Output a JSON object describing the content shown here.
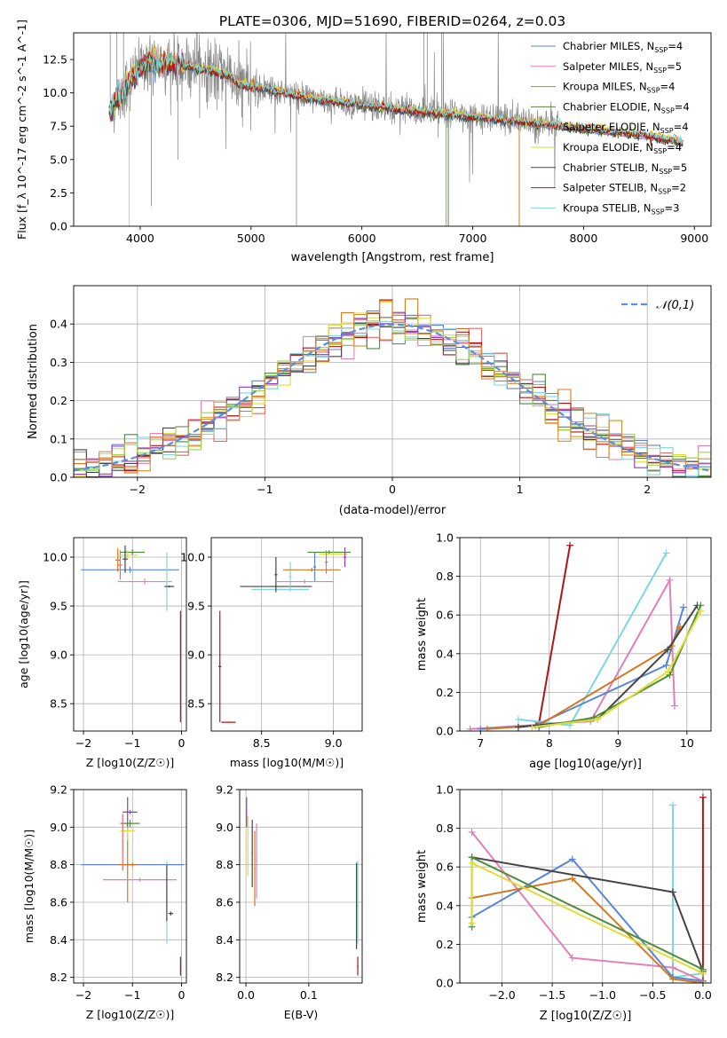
{
  "figure_title": "PLATE=0306, MJD=51690, FIBERID=0264, z=0.03",
  "colors": {
    "series": [
      "#5b84d8",
      "#e07fb8",
      "#d4781f",
      "#4f8c3a",
      "#e46b6b",
      "#dede33",
      "#444444",
      "#b01515",
      "#7dd7e0"
    ],
    "observed": "#888888",
    "gaussian": "#5b8fd8",
    "extra_hist": [
      "#8d3fbf",
      "#9cd64b",
      "#d98c33"
    ],
    "grid": "#b0b0b0"
  },
  "chart_data": [
    {
      "id": "spectrum",
      "type": "line",
      "title": "PLATE=0306, MJD=51690, FIBERID=0264, z=0.03",
      "xlabel": "wavelength [Angstrom, rest frame]",
      "ylabel": "Flux [f_λ 10^-17 erg cm^-2 s^-1 A^-1]",
      "xlim": [
        3400,
        9150
      ],
      "ylim": [
        0,
        14.5
      ],
      "xticks": [
        4000,
        5000,
        6000,
        7000,
        8000,
        9000
      ],
      "yticks": [
        0.0,
        2.5,
        5.0,
        7.5,
        10.0,
        12.5
      ],
      "grid": false,
      "legend_position": "top-right",
      "legend": [
        {
          "base": "Chabrier MILES, N",
          "sub": "SSP",
          "tail": "=4"
        },
        {
          "base": "Salpeter MILES, N",
          "sub": "SSP",
          "tail": "=5"
        },
        {
          "base": "Kroupa MILES, N",
          "sub": "SSP",
          "tail": "=4"
        },
        {
          "base": "Chabrier ELODIE, N",
          "sub": "SSP",
          "tail": "=4"
        },
        {
          "base": "Salpeter ELODIE, N",
          "sub": "SSP",
          "tail": "=4"
        },
        {
          "base": "Kroupa ELODIE, N",
          "sub": "SSP",
          "tail": "=4"
        },
        {
          "base": "Chabrier STELIB, N",
          "sub": "SSP",
          "tail": "=5"
        },
        {
          "base": "Salpeter STELIB, N",
          "sub": "SSP",
          "tail": "=2"
        },
        {
          "base": "Kroupa STELIB, N",
          "sub": "SSP",
          "tail": "=3"
        }
      ],
      "model_shape": {
        "wavelength": [
          3720,
          3800,
          3900,
          4000,
          4100,
          4300,
          4500,
          4800,
          4900,
          5200,
          5500,
          6000,
          6500,
          7000,
          7500,
          8000,
          8500,
          8900
        ],
        "flux": [
          8.8,
          9.6,
          10.8,
          12.0,
          12.3,
          12.1,
          11.9,
          11.3,
          10.6,
          10.2,
          9.6,
          9.1,
          8.6,
          8.2,
          7.8,
          7.3,
          6.9,
          6.3
        ]
      },
      "observed_range": [
        3750,
        7770
      ]
    },
    {
      "id": "residual_hist",
      "type": "histogram",
      "xlabel": "(data-model)/error",
      "ylabel": "Normed distribution",
      "xlim": [
        -2.5,
        2.5
      ],
      "ylim": [
        0,
        0.5
      ],
      "xticks": [
        -2,
        -1,
        0,
        1,
        2
      ],
      "yticks": [
        0.0,
        0.1,
        0.2,
        0.3,
        0.4
      ],
      "bin_width": 0.1,
      "grid": true,
      "legend_position": "top-right",
      "legend_label": "𝒩(0,1)",
      "gaussian": {
        "mu": 0,
        "sigma": 1
      }
    },
    {
      "id": "age_vs_Z",
      "type": "errorbar",
      "xlabel": "Z [log10(Z/Z☉)]",
      "ylabel": "age [log10(age/yr)]",
      "xlim": [
        -2.2,
        0.1
      ],
      "ylim": [
        8.22,
        10.2
      ],
      "xticks": [
        -2,
        -1,
        0
      ],
      "yticks": [
        8.5,
        9.0,
        9.5,
        10.0
      ],
      "grid": true,
      "points": [
        {
          "s": 0,
          "x": -1.05,
          "xe": 1.0,
          "y": 9.87,
          "ye": 0.03
        },
        {
          "s": 1,
          "x": -0.75,
          "xe": 0.55,
          "y": 9.75,
          "ye": 0.03
        },
        {
          "s": 2,
          "x": -1.3,
          "xe": 0.05,
          "y": 9.97,
          "ye": 0.12
        },
        {
          "s": 3,
          "x": -1.0,
          "xe": 0.25,
          "y": 10.05,
          "ye": 0.03
        },
        {
          "s": 4,
          "x": -1.25,
          "xe": 0.04,
          "y": 9.92,
          "ye": 0.15
        },
        {
          "s": 5,
          "x": -1.1,
          "xe": 0.2,
          "y": 10.02,
          "ye": 0.05
        },
        {
          "s": 6,
          "x": -1.15,
          "xe": 0.05,
          "y": 9.98,
          "ye": 0.14
        },
        {
          "s": 8,
          "x": -0.3,
          "xe": 0.03,
          "y": 9.75,
          "ye": 0.3
        },
        {
          "s": 6,
          "x": -0.25,
          "xe": 0.1,
          "y": 9.7,
          "ye": 0.01
        },
        {
          "s": 7,
          "x": -0.02,
          "xe": 0.01,
          "y": 8.88,
          "ye": 0.57
        }
      ]
    },
    {
      "id": "age_vs_mass",
      "type": "errorbar",
      "xlabel": "mass [log10(M/M☉)]",
      "ylabel": "",
      "xlim": [
        8.15,
        9.2
      ],
      "ylim": [
        8.22,
        10.2
      ],
      "xticks": [
        8.5,
        9.0
      ],
      "yticks": [
        8.5,
        9.0,
        9.5,
        10.0
      ],
      "grid": true,
      "points": [
        {
          "s": 6,
          "x": 8.6,
          "xe": 0.25,
          "y": 9.7,
          "ye": 0.01
        },
        {
          "s": 8,
          "x": 8.63,
          "xe": 0.2,
          "y": 9.67,
          "ye": 0.01
        },
        {
          "s": 6,
          "x": 8.6,
          "xe": 0.01,
          "y": 9.82,
          "ye": 0.18
        },
        {
          "s": 8,
          "x": 8.7,
          "xe": 0.01,
          "y": 9.8,
          "ye": 0.15
        },
        {
          "s": 2,
          "x": 8.85,
          "xe": 0.2,
          "y": 9.87,
          "ye": 0.02
        },
        {
          "s": 0,
          "x": 8.87,
          "xe": 0.01,
          "y": 9.9,
          "ye": 0.15
        },
        {
          "s": 1,
          "x": 8.8,
          "xe": 0.2,
          "y": 9.75,
          "ye": 0.02
        },
        {
          "s": 3,
          "x": 8.97,
          "xe": 0.15,
          "y": 10.05,
          "ye": 0.02
        },
        {
          "s": 5,
          "x": 9.0,
          "xe": 0.1,
          "y": 10.03,
          "ye": 0.02
        },
        {
          "s": 9,
          "x": 9.08,
          "xe": 0.01,
          "y": 10.0,
          "ye": 0.1
        },
        {
          "s": 4,
          "x": 8.95,
          "xe": 0.01,
          "y": 9.95,
          "ye": 0.12
        },
        {
          "s": 7,
          "x": 8.21,
          "xe": 0.01,
          "y": 8.88,
          "ye": 0.57
        },
        {
          "s": 7,
          "x": 8.27,
          "xe": 0.05,
          "y": 8.31,
          "ye": 0.005
        }
      ]
    },
    {
      "id": "weight_vs_age",
      "type": "line",
      "xlabel": "age [log10(age/yr)]",
      "ylabel": "mass weight",
      "xlim": [
        6.7,
        10.35
      ],
      "ylim": [
        0,
        1
      ],
      "xticks": [
        7,
        8,
        9,
        10
      ],
      "yticks": [
        0.0,
        0.2,
        0.4,
        0.6,
        0.8,
        1.0
      ],
      "grid": true,
      "series": [
        {
          "s": 7,
          "x": [
            7.85,
            8.3
          ],
          "y": [
            0.04,
            0.96
          ]
        },
        {
          "s": 8,
          "x": [
            7.55,
            8.3,
            9.7
          ],
          "y": [
            0.06,
            0.03,
            0.92
          ]
        },
        {
          "s": 1,
          "x": [
            6.85,
            8.6,
            9.75,
            9.82
          ],
          "y": [
            0.01,
            0.05,
            0.78,
            0.13
          ]
        },
        {
          "s": 0,
          "x": [
            7.0,
            7.8,
            9.7,
            9.95
          ],
          "y": [
            0.01,
            0.03,
            0.34,
            0.64
          ]
        },
        {
          "s": 2,
          "x": [
            7.1,
            7.85,
            9.78,
            9.9
          ],
          "y": [
            0.01,
            0.03,
            0.44,
            0.54
          ]
        },
        {
          "s": 6,
          "x": [
            7.55,
            8.7,
            9.72,
            10.15
          ],
          "y": [
            0.02,
            0.06,
            0.42,
            0.65
          ]
        },
        {
          "s": 3,
          "x": [
            7.85,
            8.65,
            9.75,
            10.2
          ],
          "y": [
            0.02,
            0.07,
            0.29,
            0.65
          ]
        },
        {
          "s": 5,
          "x": [
            7.75,
            8.7,
            9.73,
            10.2
          ],
          "y": [
            0.02,
            0.06,
            0.31,
            0.62
          ]
        }
      ]
    },
    {
      "id": "mass_vs_Z",
      "type": "errorbar",
      "xlabel": "Z [log10(Z/Z☉)]",
      "ylabel": "mass [log10(M/M☉)]",
      "xlim": [
        -2.2,
        0.1
      ],
      "ylim": [
        8.17,
        9.2
      ],
      "xticks": [
        -2,
        -1,
        0
      ],
      "yticks": [
        8.2,
        8.4,
        8.6,
        8.8,
        9.0,
        9.2
      ],
      "grid": true,
      "points": [
        {
          "s": 0,
          "x": -1.0,
          "xe": 1.05,
          "y": 8.8,
          "ye": 0.01
        },
        {
          "s": 2,
          "x": -1.1,
          "xe": 0.2,
          "y": 8.8,
          "ye": 0.2
        },
        {
          "s": 1,
          "x": -0.85,
          "xe": 0.75,
          "y": 8.72,
          "ye": 0.01
        },
        {
          "s": 8,
          "x": -0.3,
          "xe": 0.02,
          "y": 8.6,
          "ye": 0.22
        },
        {
          "s": 6,
          "x": -0.3,
          "xe": 0.01,
          "y": 8.65,
          "ye": 0.15
        },
        {
          "s": 6,
          "x": -0.22,
          "xe": 0.05,
          "y": 8.54,
          "ye": 0.01
        },
        {
          "s": 3,
          "x": -1.05,
          "xe": 0.2,
          "y": 9.02,
          "ye": 0.02
        },
        {
          "s": 5,
          "x": -1.1,
          "xe": 0.15,
          "y": 8.98,
          "ye": 0.05
        },
        {
          "s": 9,
          "x": -1.05,
          "xe": 0.15,
          "y": 9.08,
          "ye": 0.01
        },
        {
          "s": 9,
          "x": -1.1,
          "xe": 0.01,
          "y": 9.08,
          "ye": 0.08
        },
        {
          "s": 4,
          "x": -1.2,
          "xe": 0.01,
          "y": 8.92,
          "ye": 0.15
        },
        {
          "s": 7,
          "x": -0.02,
          "xe": 0.01,
          "y": 8.26,
          "ye": 0.05
        }
      ]
    },
    {
      "id": "mass_vs_ebv",
      "type": "errorbar",
      "xlabel": "E(B-V)",
      "ylabel": "",
      "xlim": [
        -0.01,
        0.185
      ],
      "ylim": [
        8.17,
        9.2
      ],
      "xticks": [
        0.0,
        0.1
      ],
      "yticks": [
        8.2,
        8.4,
        8.6,
        8.8,
        9.0,
        9.2
      ],
      "grid": true,
      "points": [
        {
          "s": 9,
          "x": 0.001,
          "xe": 0.001,
          "y": 9.08,
          "ye": 0.08
        },
        {
          "s": 5,
          "x": 0.003,
          "xe": 0.001,
          "y": 8.9,
          "ye": 0.16
        },
        {
          "s": 6,
          "x": 0.01,
          "xe": 0.001,
          "y": 8.86,
          "ye": 0.18
        },
        {
          "s": 2,
          "x": 0.014,
          "xe": 0.001,
          "y": 8.78,
          "ye": 0.2
        },
        {
          "s": 1,
          "x": 0.017,
          "xe": 0.001,
          "y": 8.82,
          "ye": 0.2
        },
        {
          "s": 8,
          "x": 0.178,
          "xe": 0.001,
          "y": 8.6,
          "ye": 0.22
        },
        {
          "s": 6,
          "x": 0.176,
          "xe": 0.001,
          "y": 8.58,
          "ye": 0.23
        },
        {
          "s": 7,
          "x": 0.178,
          "xe": 0.001,
          "y": 8.26,
          "ye": 0.05
        }
      ]
    },
    {
      "id": "weight_vs_Z",
      "type": "line",
      "xlabel": "Z [log10(Z/Z☉)]",
      "ylabel": "mass weight",
      "xlim": [
        -2.42,
        0.08
      ],
      "ylim": [
        0,
        1
      ],
      "xticks": [
        -2.0,
        -1.5,
        -1.0,
        -0.5,
        0.0
      ],
      "yticks": [
        0.0,
        0.2,
        0.4,
        0.6,
        0.8,
        1.0
      ],
      "grid": true,
      "series": [
        {
          "s": 7,
          "x": [
            0.0,
            0.0
          ],
          "y": [
            0.96,
            0.01
          ]
        },
        {
          "s": 8,
          "x": [
            -0.3,
            -0.3,
            0.0
          ],
          "y": [
            0.92,
            0.03,
            0.05
          ]
        },
        {
          "s": 1,
          "x": [
            -2.3,
            -1.3,
            -0.3,
            0.0
          ],
          "y": [
            0.78,
            0.13,
            0.08,
            0.01
          ]
        },
        {
          "s": 0,
          "x": [
            -2.3,
            -1.3,
            -0.3,
            0.0
          ],
          "y": [
            0.34,
            0.64,
            0.03,
            0.01
          ]
        },
        {
          "s": 2,
          "x": [
            -2.3,
            -1.3,
            -0.3,
            0.0
          ],
          "y": [
            0.44,
            0.54,
            0.02,
            0.0
          ]
        },
        {
          "s": 6,
          "x": [
            -2.3,
            -0.3,
            0.0
          ],
          "y": [
            0.65,
            0.47,
            0.06
          ]
        },
        {
          "s": 3,
          "x": [
            -2.3,
            -2.3,
            0.0
          ],
          "y": [
            0.29,
            0.65,
            0.07
          ]
        },
        {
          "s": 5,
          "x": [
            -2.3,
            -2.3,
            0.0
          ],
          "y": [
            0.31,
            0.62,
            0.05
          ]
        }
      ]
    }
  ]
}
